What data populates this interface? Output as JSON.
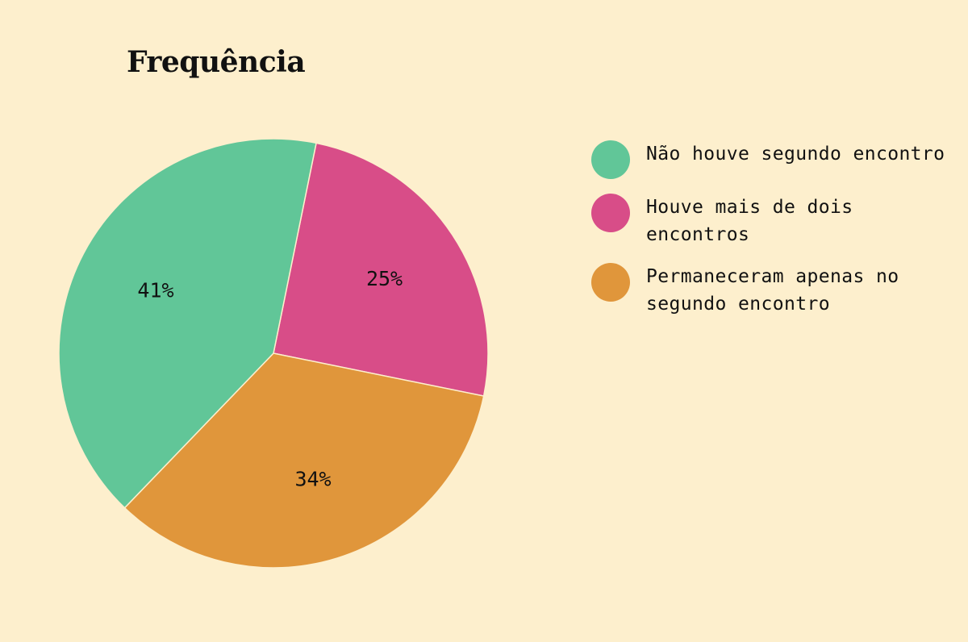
{
  "chart_data": {
    "type": "pie",
    "title": "Frequência",
    "legend_position": "right",
    "slices": [
      {
        "label": "Não houve segundo encontro",
        "value": 41,
        "display": "41%",
        "color": "#61c698"
      },
      {
        "label": "Houve mais de dois encontros",
        "value": 25,
        "display": "25%",
        "color": "#d84d88"
      },
      {
        "label": "Permaneceram apenas no segundo encontro",
        "value": 34,
        "display": "34%",
        "color": "#e0963b"
      }
    ]
  },
  "colors": {
    "background": "#fdefcd",
    "text": "#111111"
  }
}
